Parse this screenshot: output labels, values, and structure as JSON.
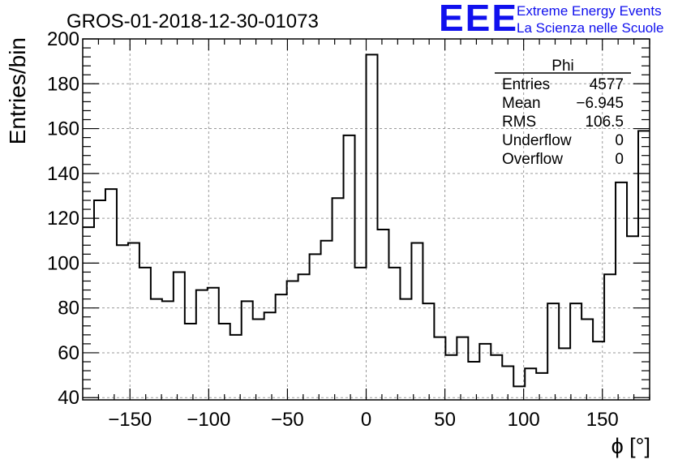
{
  "header": {
    "run_title": "GROS-01-2018-12-30-01073",
    "logo_text": "EEE",
    "project_line1": "Extreme Energy Events",
    "project_line2": "La Scienza nelle Scuole"
  },
  "stats_box": {
    "title": "Phi",
    "rows": [
      {
        "label": "Entries",
        "value": "4577"
      },
      {
        "label": "Mean",
        "value": "−6.945"
      },
      {
        "label": "RMS",
        "value": "106.5"
      },
      {
        "label": "Underflow",
        "value": "0"
      },
      {
        "label": "Overflow",
        "value": "0"
      }
    ]
  },
  "colors": {
    "line": "#000000",
    "grid": "#9a9a9a",
    "brand": "#1010ee"
  },
  "chart_data": {
    "type": "bar",
    "style": "step-histogram",
    "xlabel": "ϕ [°]",
    "ylabel": "Entries/bin",
    "xlim": [
      -180,
      180
    ],
    "ylim": [
      39,
      200
    ],
    "grid": true,
    "bin_width": 7.2,
    "x_ticks": [
      -150,
      -100,
      -50,
      0,
      50,
      100,
      150
    ],
    "x_tick_labels": [
      "−150",
      "−100",
      "−50",
      "0",
      "50",
      "100",
      "150"
    ],
    "y_ticks": [
      40,
      60,
      80,
      100,
      120,
      140,
      160,
      180,
      200
    ],
    "y_tick_labels": [
      "40",
      "60",
      "80",
      "100",
      "120",
      "140",
      "160",
      "180",
      "200"
    ],
    "values": [
      116,
      128,
      133,
      108,
      109,
      98,
      84,
      83,
      96,
      73,
      88,
      89,
      73,
      68,
      83,
      75,
      78,
      86,
      92,
      95,
      104,
      110,
      129,
      157,
      98,
      193,
      115,
      98,
      84,
      109,
      82,
      67,
      59,
      67,
      56,
      64,
      59,
      54,
      45,
      53,
      51,
      82,
      62,
      82,
      75,
      65,
      95,
      136,
      112,
      159
    ]
  }
}
